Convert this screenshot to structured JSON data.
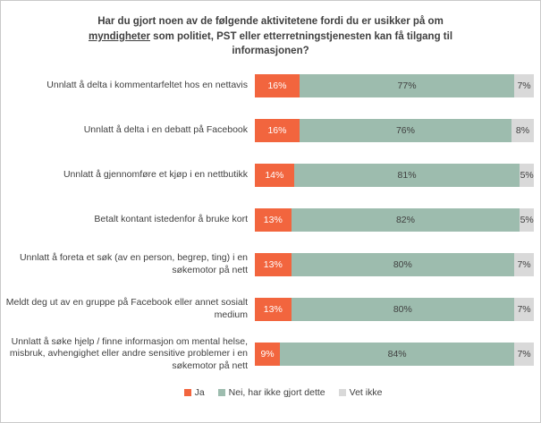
{
  "title": {
    "line1": "Har du gjort noen av de følgende aktivitetene fordi du er usikker på om",
    "line2_underlined": "myndigheter",
    "line2_rest": " som politiet, PST eller etterretningstjenesten kan få tilgang til",
    "line3": "informasjonen?"
  },
  "colors": {
    "ja": "#F2653E",
    "nei": "#9DBCAE",
    "vet_ikke": "#D9D9D9",
    "text": "#404040",
    "border": "#C9C9C9"
  },
  "chart_data": {
    "type": "bar",
    "orientation": "horizontal-stacked",
    "title": "Har du gjort noen av de følgende aktivitetene fordi du er usikker på om myndigheter som politiet, PST eller etterretningstjenesten kan få tilgang til informasjonen?",
    "categories": [
      "Unnlatt å delta i kommentarfeltet hos en nettavis",
      "Unnlatt å delta i en debatt på Facebook",
      "Unnlatt å gjennomføre et kjøp i en nettbutikk",
      "Betalt kontant istedenfor å bruke kort",
      "Unnlatt å foreta et søk (av en person, begrep, ting) i en søkemotor på nett",
      "Meldt deg ut av en gruppe på Facebook eller annet sosialt medium",
      "Unnlatt å søke hjelp / finne informasjon om mental helse, misbruk, avhengighet eller andre sensitive problemer i en søkemotor på nett"
    ],
    "series": [
      {
        "name": "Ja",
        "color": "#F2653E",
        "label_color": "#FFFFFF",
        "values": [
          16,
          16,
          14,
          13,
          13,
          13,
          9
        ]
      },
      {
        "name": "Nei, har ikke gjort dette",
        "color": "#9DBCAE",
        "label_color": "#404040",
        "values": [
          77,
          76,
          81,
          82,
          80,
          80,
          84
        ]
      },
      {
        "name": "Vet ikke",
        "color": "#D9D9D9",
        "label_color": "#404040",
        "values": [
          7,
          8,
          5,
          5,
          7,
          7,
          7
        ]
      }
    ],
    "value_suffix": "%",
    "xlim": [
      0,
      100
    ],
    "grid": false,
    "legend_position": "bottom"
  }
}
